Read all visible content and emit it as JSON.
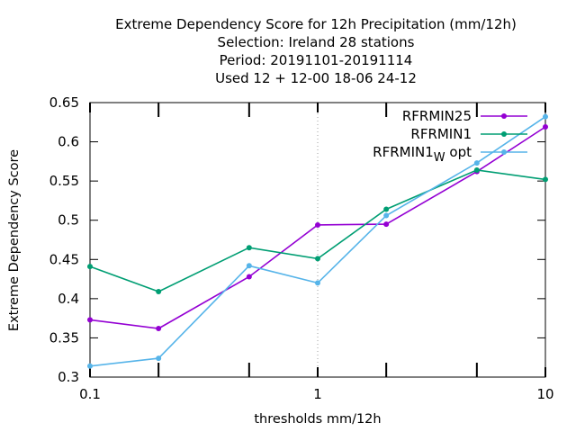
{
  "chart_data": {
    "type": "line",
    "title_lines": [
      "Extreme Dependency Score  for 12h Precipitation (mm/12h)",
      "Selection: Ireland     28 stations",
      "Period: 20191101-20191114",
      "Used  12 + 12-00 18-06 24-12"
    ],
    "xlabel": "thresholds mm/12h",
    "ylabel": "Extreme Dependency Score",
    "xscale": "log",
    "xlim": [
      0.1,
      10
    ],
    "ylim": [
      0.3,
      0.65
    ],
    "xticks": [
      {
        "v": 0.1,
        "label": "0.1"
      },
      {
        "v": 1,
        "label": "1"
      },
      {
        "v": 10,
        "label": "10"
      }
    ],
    "xminor": [
      0.2,
      0.5,
      2,
      5
    ],
    "yticks": [
      {
        "v": 0.3,
        "label": "0.3"
      },
      {
        "v": 0.35,
        "label": "0.35"
      },
      {
        "v": 0.4,
        "label": "0.4"
      },
      {
        "v": 0.45,
        "label": "0.45"
      },
      {
        "v": 0.5,
        "label": "0.5"
      },
      {
        "v": 0.55,
        "label": "0.55"
      },
      {
        "v": 0.6,
        "label": "0.6"
      },
      {
        "v": 0.65,
        "label": "0.65"
      }
    ],
    "grid": "x major only",
    "legend_position": "top-right",
    "x": [
      0.1,
      0.2,
      0.5,
      1,
      2,
      5,
      10
    ],
    "series": [
      {
        "name": "RFRMIN25",
        "sub": "",
        "suffix": "",
        "color": "#9400d3",
        "marker": "filled-circle",
        "values": [
          0.373,
          0.362,
          0.428,
          0.494,
          0.495,
          0.562,
          0.619
        ]
      },
      {
        "name": "RFRMIN1",
        "sub": "",
        "suffix": "",
        "color": "#009e73",
        "marker": "filled-circle",
        "values": [
          0.441,
          0.409,
          0.465,
          0.451,
          0.514,
          0.564,
          0.552
        ]
      },
      {
        "name": "RFRMIN1",
        "sub": "W",
        "suffix": " opt",
        "color": "#56b4e9",
        "marker": "filled-circle",
        "values": [
          0.314,
          0.324,
          0.442,
          0.42,
          0.506,
          0.573,
          0.632
        ]
      }
    ]
  }
}
